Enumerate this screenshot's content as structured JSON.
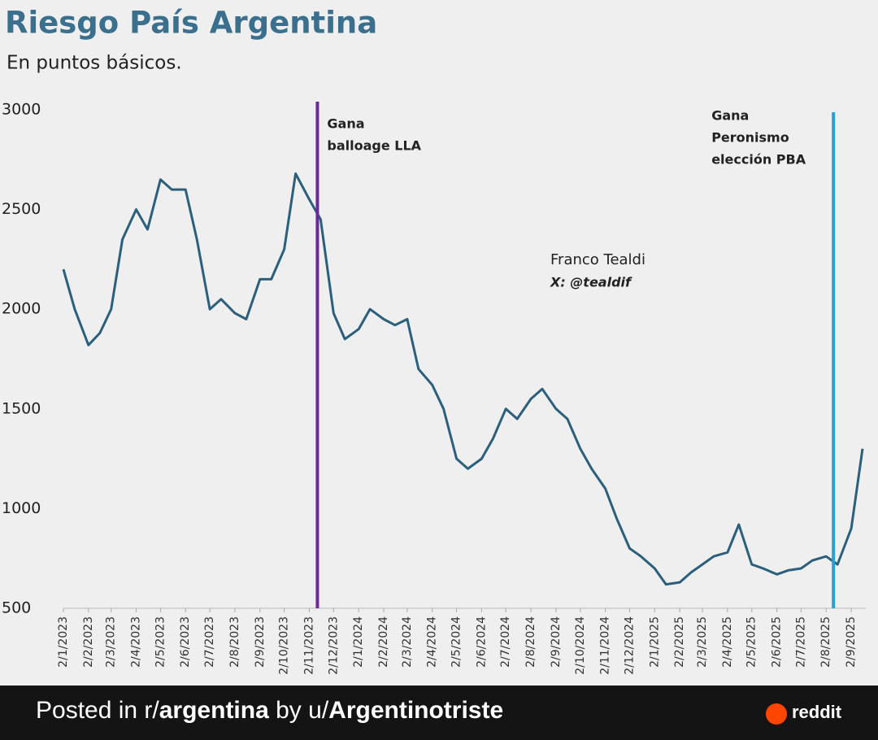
{
  "chart_data": {
    "type": "line",
    "title": "Riesgo País Argentina",
    "subtitle": "En puntos básicos.",
    "x": [
      "2/1/2023",
      "16/1/2023",
      "2/2/2023",
      "16/2/2023",
      "2/3/2023",
      "16/3/2023",
      "2/4/2023",
      "16/4/2023",
      "2/5/2023",
      "16/5/2023",
      "2/6/2023",
      "16/6/2023",
      "2/7/2023",
      "16/7/2023",
      "2/8/2023",
      "16/8/2023",
      "2/9/2023",
      "16/9/2023",
      "2/10/2023",
      "16/10/2023",
      "2/11/2023",
      "16/11/2023",
      "2/12/2023",
      "16/12/2023",
      "2/1/2024",
      "16/1/2024",
      "2/2/2024",
      "16/2/2024",
      "2/3/2024",
      "16/3/2024",
      "2/4/2024",
      "16/4/2024",
      "2/5/2024",
      "16/5/2024",
      "2/6/2024",
      "16/6/2024",
      "2/7/2024",
      "16/7/2024",
      "2/8/2024",
      "16/8/2024",
      "2/9/2024",
      "16/9/2024",
      "2/10/2024",
      "16/10/2024",
      "2/11/2024",
      "16/11/2024",
      "2/12/2024",
      "16/12/2024",
      "2/1/2025",
      "16/1/2025",
      "2/2/2025",
      "16/2/2025",
      "2/3/2025",
      "16/3/2025",
      "2/4/2025",
      "16/4/2025",
      "2/5/2025",
      "16/5/2025",
      "2/6/2025",
      "16/6/2025",
      "2/7/2025",
      "16/7/2025",
      "2/8/2025",
      "16/8/2025",
      "2/9/2025",
      "16/9/2025"
    ],
    "values": [
      2200,
      2000,
      1820,
      1880,
      2000,
      2350,
      2500,
      2400,
      2650,
      2600,
      2600,
      2350,
      2000,
      2050,
      1980,
      1950,
      2150,
      2150,
      2300,
      2680,
      2550,
      2450,
      1980,
      1850,
      1900,
      2000,
      1950,
      1920,
      1950,
      1700,
      1620,
      1500,
      1250,
      1200,
      1250,
      1350,
      1500,
      1450,
      1550,
      1600,
      1500,
      1450,
      1300,
      1200,
      1100,
      950,
      800,
      760,
      700,
      620,
      630,
      680,
      720,
      760,
      780,
      920,
      720,
      700,
      670,
      690,
      700,
      740,
      760,
      720,
      900,
      1300
    ],
    "color": "#2b5f7c",
    "xlim": [
      "2/1/2023",
      "20/9/2025"
    ],
    "xticks": [
      "2/1/2023",
      "2/2/2023",
      "2/3/2023",
      "2/4/2023",
      "2/5/2023",
      "2/6/2023",
      "2/7/2023",
      "2/8/2023",
      "2/9/2023",
      "2/10/2023",
      "2/11/2023",
      "2/12/2023",
      "2/1/2024",
      "2/2/2024",
      "2/3/2024",
      "2/4/2024",
      "2/5/2024",
      "2/6/2024",
      "2/7/2024",
      "2/8/2024",
      "2/9/2024",
      "2/10/2024",
      "2/11/2024",
      "2/12/2024",
      "2/1/2025",
      "2/2/2025",
      "2/3/2025",
      "2/4/2025",
      "2/5/2025",
      "2/6/2025",
      "2/7/2025",
      "2/8/2025",
      "2/9/2025"
    ],
    "ylim": [
      500,
      3000
    ],
    "yticks": [
      500,
      1000,
      1500,
      2000,
      2500,
      3000
    ],
    "annotations": [
      {
        "lines": [
          "Gana",
          "balloage LLA"
        ],
        "x": "12/11/2023",
        "color": "#6b2a9b"
      },
      {
        "lines": [
          "Gana",
          "Peronismo",
          "elección PBA"
        ],
        "x": "11/8/2025",
        "color": "#2aa0d2"
      }
    ],
    "credit": [
      "Franco Tealdi",
      "X: @tealdif"
    ]
  },
  "footer": {
    "prefix": "Posted in r/",
    "subreddit": "argentina",
    "middle": " by u/",
    "user": "Argentinotriste",
    "brand": "reddit"
  }
}
